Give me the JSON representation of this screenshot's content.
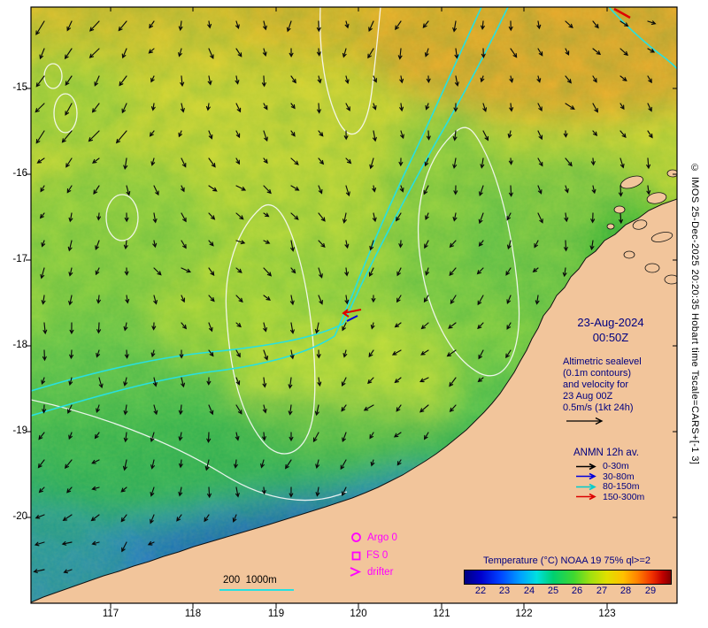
{
  "map": {
    "date": "23-Aug-2024",
    "time": "00:50Z"
  },
  "annotation": {
    "lines": [
      "Altimetric sealevel",
      "(0.1m contours)",
      "and velocity for",
      "23 Aug 00Z",
      "0.5m/s (1kt 24h)"
    ]
  },
  "anmn": {
    "title": "ANMN 12h av.",
    "items": [
      {
        "label": "0-30m",
        "color": "#000000"
      },
      {
        "label": "30-80m",
        "color": "#0000dd"
      },
      {
        "label": "80-150m",
        "color": "#00cccc"
      },
      {
        "label": "150-300m",
        "color": "#dd0000"
      }
    ]
  },
  "symbols": {
    "argo": "Argo 0",
    "fs": "FS 0",
    "drifter": "drifter"
  },
  "isobath_label": "200  1000m",
  "colorbar": {
    "title": "Temperature (°C) NOAA 19 75% ql>=2",
    "ticks": [
      "22",
      "23",
      "24",
      "25",
      "26",
      "27",
      "28",
      "29"
    ]
  },
  "axes": {
    "x_ticks": [
      "117",
      "118",
      "119",
      "120",
      "121",
      "122",
      "123"
    ],
    "y_ticks": [
      "-15",
      "-16",
      "-17",
      "-18",
      "-19",
      "-20"
    ]
  },
  "watermark": "© IMOS 25-Dec-2025 20:20:35 Hobart time Tscale=CARS+[-1 3]",
  "vector_field_note": "surface velocity vectors, predominantly southward, scale 0.5 m/s",
  "colors": {
    "land": "#f2c59b",
    "navy": "#000080",
    "magenta": "#ff00ff",
    "bathy_cyan": "#28e0e0",
    "anmn0": "#000000",
    "anmn1": "#0000dd",
    "anmn2": "#00cccc",
    "anmn3": "#dd0000"
  }
}
